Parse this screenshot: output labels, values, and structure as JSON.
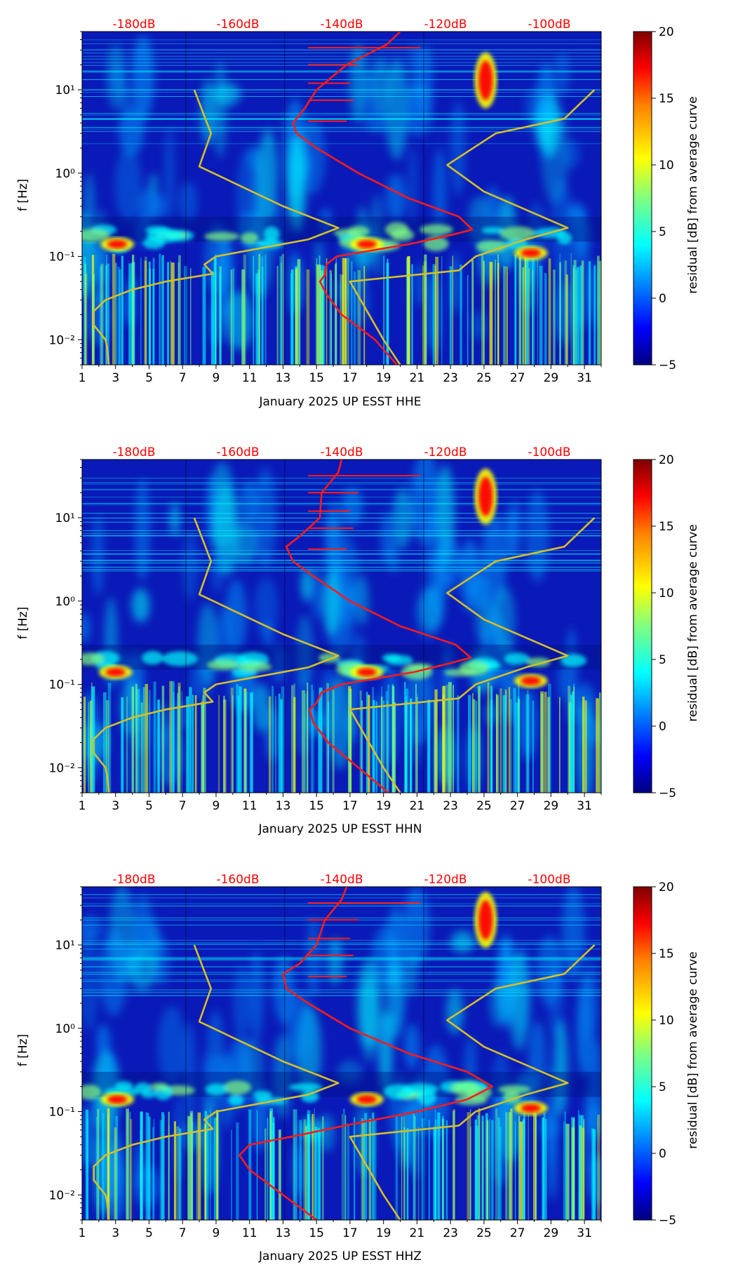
{
  "colors": {
    "noise_model_line": "#d4bf2a",
    "average_line": "#ff1a1a",
    "top_labels": "#ff0000",
    "jet": [
      "#00007f",
      "#0000ff",
      "#00a0ff",
      "#00ffff",
      "#80ff80",
      "#ffff00",
      "#ff8000",
      "#ff0000",
      "#7f0000"
    ]
  },
  "shared": {
    "ylabel": "f [Hz]",
    "colorbar_label": "residual [dB] from average curve",
    "colorbar_range": [
      -5,
      20
    ],
    "colorbar_ticks": [
      "−5",
      "0",
      "5",
      "10",
      "15",
      "20"
    ],
    "x_ticks": [
      "1",
      "3",
      "5",
      "7",
      "9",
      "11",
      "13",
      "15",
      "17",
      "19",
      "21",
      "23",
      "25",
      "27",
      "29",
      "31"
    ],
    "y_ticks": [
      "10⁻²",
      "10⁻¹",
      "10⁰",
      "10¹"
    ],
    "top_db_labels": [
      "-180dB",
      "-160dB",
      "-140dB",
      "-120dB",
      "-100dB"
    ]
  },
  "chart_data": [
    {
      "type": "heatmap",
      "xlabel": "January 2025 UP ESST  HHE",
      "ylabel": "f [Hz]",
      "xlim": [
        1,
        32
      ],
      "ylim": [
        0.005,
        50
      ],
      "yscale": "log",
      "top_axis": {
        "labels": [
          "-180dB",
          "-160dB",
          "-140dB",
          "-120dB",
          "-100dB"
        ],
        "range_db": [
          -190,
          -90
        ]
      },
      "noise_model_curve": {
        "name": "",
        "points": [
          [
            2.6,
            0.005
          ],
          [
            2.5,
            0.008
          ],
          [
            2.4,
            0.01
          ],
          [
            1.7,
            0.015
          ],
          [
            1.7,
            0.022
          ],
          [
            2.4,
            0.03
          ],
          [
            4.0,
            0.04
          ],
          [
            6.0,
            0.05
          ],
          [
            8.8,
            0.062
          ],
          [
            8.3,
            0.08
          ],
          [
            9.0,
            0.1
          ],
          [
            14.5,
            0.16
          ],
          [
            16.3,
            0.22
          ],
          [
            13.0,
            0.4
          ],
          [
            8.0,
            1.2
          ],
          [
            8.7,
            3.0
          ],
          [
            7.7,
            10.0
          ]
        ]
      },
      "noise_model_curve_2": {
        "name": "",
        "points": [
          [
            20.0,
            0.005
          ],
          [
            19.0,
            0.01
          ],
          [
            17.0,
            0.05
          ],
          [
            23.5,
            0.068
          ],
          [
            24.5,
            0.1
          ],
          [
            27.5,
            0.16
          ],
          [
            30.0,
            0.22
          ],
          [
            25.0,
            0.6
          ],
          [
            22.8,
            1.25
          ],
          [
            25.7,
            3.0
          ],
          [
            29.8,
            4.5
          ],
          [
            31.6,
            10.0
          ]
        ]
      },
      "average_curve": {
        "name": "",
        "points": [
          [
            19.8,
            0.005
          ],
          [
            18.5,
            0.01
          ],
          [
            16.5,
            0.02
          ],
          [
            15.6,
            0.035
          ],
          [
            15.2,
            0.05
          ],
          [
            15.5,
            0.06
          ],
          [
            15.6,
            0.08
          ],
          [
            16.2,
            0.1
          ],
          [
            20.5,
            0.14
          ],
          [
            23.0,
            0.18
          ],
          [
            24.3,
            0.21
          ],
          [
            23.5,
            0.3
          ],
          [
            20.5,
            0.5
          ],
          [
            17.5,
            1.0
          ],
          [
            15.0,
            2.0
          ],
          [
            13.8,
            3.0
          ],
          [
            13.6,
            4.0
          ],
          [
            14.3,
            6.0
          ],
          [
            15.0,
            10.0
          ],
          [
            16.8,
            20.0
          ],
          [
            19.2,
            35.0
          ],
          [
            20.0,
            50.0
          ]
        ]
      },
      "hotspots": [
        {
          "day": 3.1,
          "f": 0.14,
          "residual_db": 18
        },
        {
          "day": 18.0,
          "f": 0.14,
          "residual_db": 16
        },
        {
          "day": 25.1,
          "f": 13,
          "residual_db": 17
        },
        {
          "day": 27.8,
          "f": 0.11,
          "residual_db": 19
        }
      ]
    },
    {
      "type": "heatmap",
      "xlabel": "January 2025 UP ESST  HHN",
      "ylabel": "f [Hz]",
      "xlim": [
        1,
        32
      ],
      "ylim": [
        0.005,
        50
      ],
      "yscale": "log",
      "top_axis": {
        "labels": [
          "-180dB",
          "-160dB",
          "-140dB",
          "-120dB",
          "-100dB"
        ],
        "range_db": [
          -190,
          -90
        ]
      },
      "noise_model_curve": {
        "name": "",
        "points": [
          [
            2.6,
            0.005
          ],
          [
            2.5,
            0.008
          ],
          [
            2.4,
            0.01
          ],
          [
            1.7,
            0.015
          ],
          [
            1.7,
            0.022
          ],
          [
            2.4,
            0.03
          ],
          [
            4.0,
            0.04
          ],
          [
            6.0,
            0.05
          ],
          [
            8.8,
            0.062
          ],
          [
            8.3,
            0.08
          ],
          [
            9.0,
            0.1
          ],
          [
            14.5,
            0.16
          ],
          [
            16.3,
            0.22
          ],
          [
            13.0,
            0.4
          ],
          [
            8.0,
            1.2
          ],
          [
            8.7,
            3.0
          ],
          [
            7.7,
            10.0
          ]
        ]
      },
      "noise_model_curve_2": {
        "name": "",
        "points": [
          [
            20.0,
            0.005
          ],
          [
            19.0,
            0.01
          ],
          [
            17.0,
            0.05
          ],
          [
            23.5,
            0.068
          ],
          [
            24.5,
            0.1
          ],
          [
            27.5,
            0.16
          ],
          [
            30.0,
            0.22
          ],
          [
            25.0,
            0.6
          ],
          [
            22.8,
            1.25
          ],
          [
            25.7,
            3.0
          ],
          [
            29.8,
            4.5
          ],
          [
            31.6,
            10.0
          ]
        ]
      },
      "average_curve": {
        "name": "",
        "points": [
          [
            19.3,
            0.005
          ],
          [
            17.5,
            0.01
          ],
          [
            15.7,
            0.02
          ],
          [
            14.8,
            0.035
          ],
          [
            14.6,
            0.05
          ],
          [
            15.0,
            0.06
          ],
          [
            15.3,
            0.08
          ],
          [
            16.5,
            0.1
          ],
          [
            20.8,
            0.14
          ],
          [
            23.0,
            0.18
          ],
          [
            24.2,
            0.21
          ],
          [
            23.3,
            0.3
          ],
          [
            20.0,
            0.5
          ],
          [
            17.0,
            1.0
          ],
          [
            14.8,
            2.0
          ],
          [
            13.6,
            3.0
          ],
          [
            13.2,
            4.5
          ],
          [
            14.0,
            6.0
          ],
          [
            15.2,
            10.0
          ],
          [
            15.3,
            20.0
          ],
          [
            16.3,
            35.0
          ],
          [
            16.5,
            50.0
          ]
        ]
      },
      "hotspots": [
        {
          "day": 3.0,
          "f": 0.14,
          "residual_db": 18
        },
        {
          "day": 18.0,
          "f": 0.14,
          "residual_db": 16
        },
        {
          "day": 25.1,
          "f": 18,
          "residual_db": 18
        },
        {
          "day": 27.8,
          "f": 0.11,
          "residual_db": 19
        }
      ]
    },
    {
      "type": "heatmap",
      "xlabel": "January 2025 UP ESST  HHZ",
      "ylabel": "f [Hz]",
      "xlim": [
        1,
        32
      ],
      "ylim": [
        0.005,
        50
      ],
      "yscale": "log",
      "top_axis": {
        "labels": [
          "-180dB",
          "-160dB",
          "-140dB",
          "-120dB",
          "-100dB"
        ],
        "range_db": [
          -190,
          -90
        ]
      },
      "noise_model_curve": {
        "name": "",
        "points": [
          [
            2.6,
            0.005
          ],
          [
            2.5,
            0.008
          ],
          [
            2.4,
            0.01
          ],
          [
            1.7,
            0.015
          ],
          [
            1.7,
            0.022
          ],
          [
            2.4,
            0.03
          ],
          [
            4.0,
            0.04
          ],
          [
            6.0,
            0.05
          ],
          [
            8.8,
            0.062
          ],
          [
            8.3,
            0.08
          ],
          [
            9.0,
            0.1
          ],
          [
            14.5,
            0.16
          ],
          [
            16.3,
            0.22
          ],
          [
            13.0,
            0.4
          ],
          [
            8.0,
            1.2
          ],
          [
            8.7,
            3.0
          ],
          [
            7.7,
            10.0
          ]
        ]
      },
      "noise_model_curve_2": {
        "name": "",
        "points": [
          [
            20.0,
            0.005
          ],
          [
            19.0,
            0.01
          ],
          [
            17.0,
            0.05
          ],
          [
            23.5,
            0.068
          ],
          [
            24.5,
            0.1
          ],
          [
            27.5,
            0.16
          ],
          [
            30.0,
            0.22
          ],
          [
            25.0,
            0.6
          ],
          [
            22.8,
            1.25
          ],
          [
            25.7,
            3.0
          ],
          [
            29.8,
            4.5
          ],
          [
            31.6,
            10.0
          ]
        ]
      },
      "average_curve": {
        "name": "",
        "points": [
          [
            15.0,
            0.005
          ],
          [
            13.0,
            0.01
          ],
          [
            11.0,
            0.02
          ],
          [
            10.4,
            0.03
          ],
          [
            11.0,
            0.04
          ],
          [
            13.5,
            0.05
          ],
          [
            17.0,
            0.07
          ],
          [
            21.0,
            0.1
          ],
          [
            24.0,
            0.14
          ],
          [
            25.5,
            0.2
          ],
          [
            24.0,
            0.3
          ],
          [
            20.5,
            0.5
          ],
          [
            17.0,
            1.0
          ],
          [
            14.5,
            2.0
          ],
          [
            13.2,
            3.0
          ],
          [
            13.0,
            4.5
          ],
          [
            14.0,
            6.0
          ],
          [
            15.0,
            10.0
          ],
          [
            15.5,
            20.0
          ],
          [
            16.5,
            35.0
          ],
          [
            16.8,
            50.0
          ]
        ]
      },
      "hotspots": [
        {
          "day": 3.1,
          "f": 0.14,
          "residual_db": 18
        },
        {
          "day": 18.0,
          "f": 0.14,
          "residual_db": 16
        },
        {
          "day": 25.1,
          "f": 20,
          "residual_db": 18
        },
        {
          "day": 27.8,
          "f": 0.11,
          "residual_db": 19
        }
      ]
    }
  ]
}
